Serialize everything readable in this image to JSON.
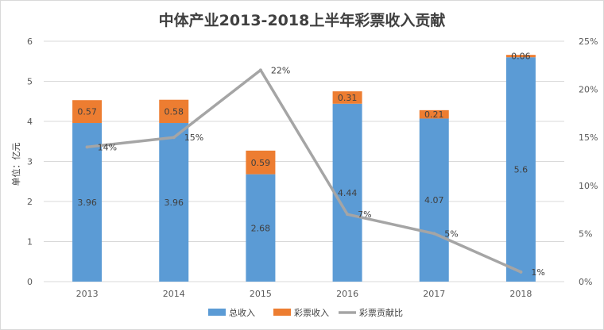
{
  "chart_data": {
    "type": "bar",
    "title": "中体产业2013-2018上半年彩票收入贡献",
    "ylabel": "单位：亿元",
    "categories": [
      "2013",
      "2014",
      "2015",
      "2016",
      "2017",
      "2018"
    ],
    "ylim": [
      0,
      6
    ],
    "y_ticks": [
      "0",
      "1",
      "2",
      "3",
      "4",
      "5",
      "6"
    ],
    "y2lim": [
      0,
      25
    ],
    "y2_ticks": [
      "0%",
      "5%",
      "10%",
      "15%",
      "20%",
      "25%"
    ],
    "grid": true,
    "legend_position": "bottom",
    "series": [
      {
        "name": "总收入",
        "type": "stacked-bar",
        "color": "#5b9bd5",
        "values": [
          3.96,
          3.96,
          2.68,
          4.44,
          4.07,
          5.6
        ],
        "labels": [
          "3.96",
          "3.96",
          "2.68",
          "4.44",
          "4.07",
          "5.6"
        ]
      },
      {
        "name": "彩票收入",
        "type": "stacked-bar",
        "color": "#ed7d31",
        "values": [
          0.57,
          0.58,
          0.59,
          0.31,
          0.21,
          0.06
        ],
        "labels": [
          "0.57",
          "0.58",
          "0.59",
          "0.31",
          "0.21",
          "0.06"
        ]
      },
      {
        "name": "彩票贡献比",
        "type": "line",
        "axis": "secondary",
        "color": "#a5a5a5",
        "values": [
          14,
          15,
          22,
          7,
          5,
          1
        ],
        "labels": [
          "14%",
          "15%",
          "22%",
          "7%",
          "5%",
          "1%"
        ]
      }
    ]
  }
}
